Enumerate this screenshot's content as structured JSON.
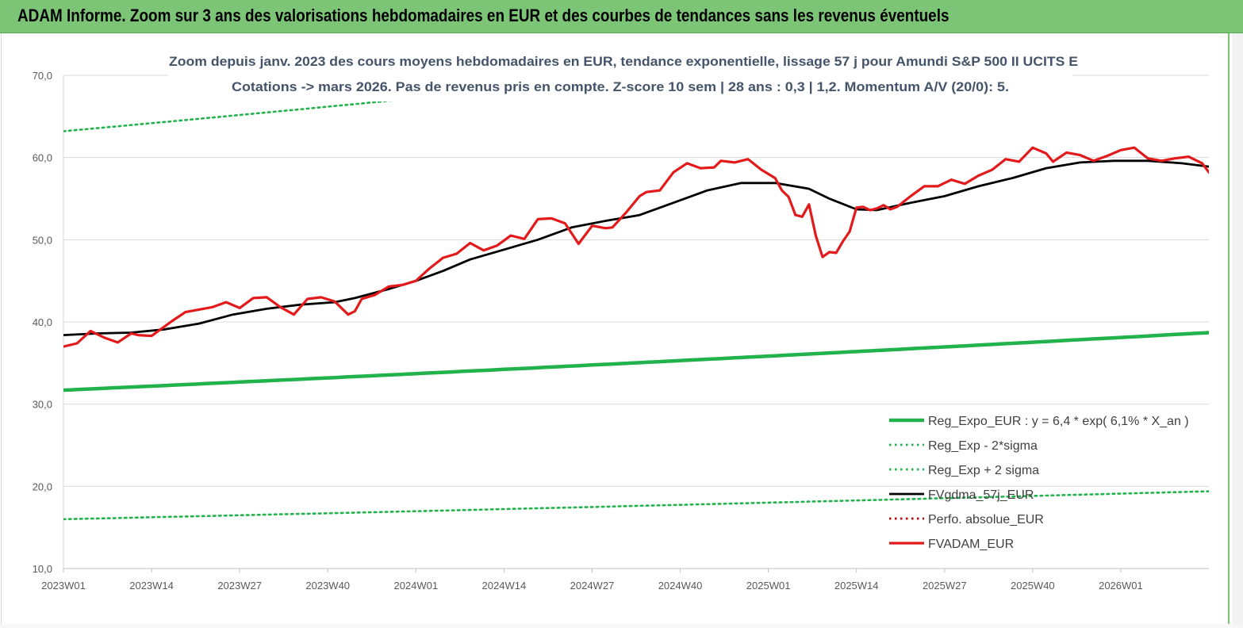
{
  "banner": {
    "title": "ADAM Informe. Zoom sur 3 ans des valorisations hebdomadaires en EUR et des courbes de tendances sans les revenus éventuels"
  },
  "colors": {
    "banner_bg": "#7cc576",
    "trend_green": "#22b24c",
    "adam_red": "#e31a1c",
    "fvgdma_black": "#000000",
    "perfo_red": "#c00000"
  },
  "chart_data": {
    "type": "line",
    "title_lines": [
      "Zoom depuis janv. 2023 des cours moyens hebdomadaires en EUR, tendance exponentielle, lissage 57 j pour Amundi S&P 500 II UCITS E",
      "Cotations -> mars 2026. Pas de revenus pris en compte. Z-score 10 sem | 28 ans : 0,3 | 1,2. Momentum A/V (20/0): 5."
    ],
    "ylim": [
      10,
      70
    ],
    "y_ticks": [
      "10,0",
      "20,0",
      "30,0",
      "40,0",
      "50,0",
      "60,0",
      "70,0"
    ],
    "y_tick_values": [
      10,
      20,
      30,
      40,
      50,
      60,
      70
    ],
    "x_ticks": [
      "2023W01",
      "2023W14",
      "2023W27",
      "2023W40",
      "2024W01",
      "2024W14",
      "2024W27",
      "2024W40",
      "2025W01",
      "2025W14",
      "2025W27",
      "2025W40",
      "2026W01"
    ],
    "x_tick_weeks": [
      0,
      13,
      26,
      39,
      52,
      65,
      78,
      91,
      104,
      117,
      130,
      143,
      156
    ],
    "xlim_weeks": [
      0,
      169
    ],
    "grid": "horizontal",
    "legend_position": "bottom-right",
    "series": [
      {
        "name": "Reg_Expo_EUR : y = 6,4 * exp( 6,1% *  X_an )",
        "style": "solid-thick",
        "color": "#22b24c",
        "x": [
          0,
          169
        ],
        "y": [
          31.7,
          38.7
        ],
        "curve": "exponential"
      },
      {
        "name": "Reg_Exp - 2*sigma",
        "style": "dotted",
        "color": "#22b24c",
        "x": [
          0,
          169
        ],
        "y": [
          16.0,
          19.4
        ],
        "curve": "exponential"
      },
      {
        "name": "Reg_Exp + 2 sigma",
        "style": "dotted",
        "color": "#22b24c",
        "x": [
          0,
          169
        ],
        "y": [
          63.2,
          77.2
        ],
        "curve": "exponential"
      },
      {
        "name": "FVgdma_57j_EUR",
        "style": "solid",
        "color": "#000000",
        "x": [
          0,
          5,
          10,
          15,
          20,
          25,
          30,
          35,
          40,
          43,
          48,
          52,
          56,
          60,
          65,
          70,
          75,
          80,
          85,
          90,
          95,
          100,
          105,
          110,
          113,
          117,
          120,
          125,
          130,
          135,
          140,
          145,
          150,
          155,
          160,
          165,
          169
        ],
        "y": [
          38.4,
          38.6,
          38.7,
          39.1,
          39.8,
          40.9,
          41.6,
          42.1,
          42.4,
          42.9,
          44.0,
          45.0,
          46.2,
          47.6,
          48.8,
          50.0,
          51.5,
          52.3,
          53.0,
          54.5,
          56.0,
          56.9,
          56.9,
          56.2,
          55.0,
          53.7,
          53.6,
          54.5,
          55.3,
          56.5,
          57.5,
          58.7,
          59.4,
          59.6,
          59.6,
          59.3,
          58.9
        ]
      },
      {
        "name": "Perfo. absolue_EUR",
        "style": "dotted",
        "color": "#c00000",
        "x": [],
        "y": []
      },
      {
        "name": "FVADAM_EUR",
        "style": "solid-thick",
        "color": "#e31a1c",
        "x": [
          0,
          2,
          4,
          6,
          8,
          10,
          11,
          13,
          14,
          16,
          18,
          20,
          22,
          24,
          26,
          28,
          30,
          32,
          34,
          36,
          38,
          40,
          42,
          43,
          44,
          46,
          48,
          50,
          52,
          54,
          56,
          58,
          60,
          62,
          64,
          66,
          68,
          70,
          72,
          74,
          76,
          78,
          80,
          81,
          83,
          85,
          86,
          88,
          90,
          92,
          94,
          96,
          97,
          99,
          101,
          103,
          105,
          106,
          107,
          108,
          109,
          110,
          111,
          112,
          113,
          114,
          115,
          116,
          117,
          118,
          119,
          120,
          121,
          122,
          123,
          125,
          127,
          129,
          131,
          133,
          135,
          137,
          139,
          141,
          143,
          145,
          146,
          148,
          150,
          152,
          154,
          156,
          158,
          160,
          162,
          164,
          166,
          168,
          169
        ],
        "y": [
          37.0,
          37.4,
          38.9,
          38.1,
          37.5,
          38.6,
          38.4,
          38.3,
          38.9,
          40.1,
          41.2,
          41.5,
          41.8,
          42.4,
          41.7,
          42.9,
          43.0,
          41.8,
          40.9,
          42.8,
          43.0,
          42.5,
          40.9,
          41.3,
          42.8,
          43.3,
          44.3,
          44.5,
          45.0,
          46.5,
          47.8,
          48.3,
          49.6,
          48.7,
          49.3,
          50.5,
          50.1,
          52.5,
          52.6,
          52.0,
          49.5,
          51.7,
          51.4,
          51.5,
          53.3,
          55.3,
          55.8,
          56.0,
          58.2,
          59.3,
          58.7,
          58.8,
          59.6,
          59.4,
          59.8,
          58.5,
          57.5,
          56.0,
          55.2,
          53.0,
          52.8,
          54.3,
          50.5,
          47.9,
          48.5,
          48.4,
          49.8,
          51.0,
          53.9,
          54.0,
          53.6,
          53.8,
          54.2,
          53.7,
          54.0,
          55.3,
          56.5,
          56.5,
          57.3,
          56.8,
          57.8,
          58.5,
          59.8,
          59.5,
          61.2,
          60.5,
          59.5,
          60.6,
          60.3,
          59.6,
          60.2,
          60.9,
          61.2,
          59.9,
          59.6,
          59.9,
          60.1,
          59.3,
          58.2
        ]
      }
    ]
  }
}
